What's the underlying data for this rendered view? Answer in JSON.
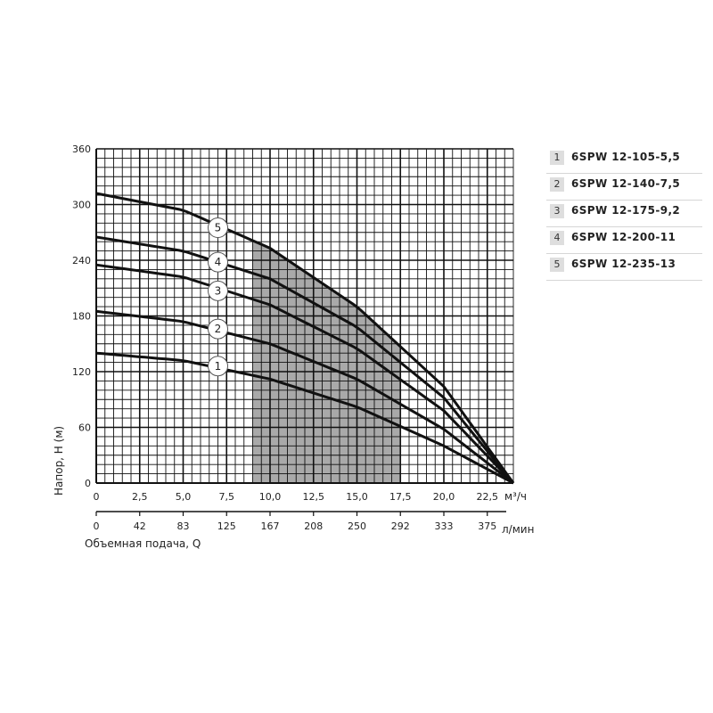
{
  "chart_data": {
    "type": "line",
    "ylabel": "Напор, H (м)",
    "xlabel": "Объемная подача, Q",
    "x_unit": "м³/ч",
    "x2_unit": "л/мин",
    "ylim": [
      0,
      360
    ],
    "xlim": [
      0,
      24
    ],
    "y_ticks": [
      0,
      60,
      120,
      180,
      240,
      300,
      360
    ],
    "x_ticks": [
      0,
      2.5,
      5.0,
      7.5,
      10.0,
      12.5,
      15.0,
      17.5,
      20.0,
      22.5
    ],
    "x_tick_labels": [
      "0",
      "2,5",
      "5,0",
      "7,5",
      "10,0",
      "12,5",
      "15,0",
      "17,5",
      "20,0",
      "22,5"
    ],
    "x2_tick_labels": [
      "0",
      "42",
      "83",
      "125",
      "167",
      "208",
      "250",
      "292",
      "333",
      "375"
    ],
    "grid": true,
    "shaded_region": {
      "x_from": 9.0,
      "x_to": 17.5
    },
    "series": [
      {
        "name": "6SPW 12-105-5,5",
        "label": "1",
        "label_at": [
          7,
          126
        ],
        "x": [
          0,
          5,
          10,
          15,
          20,
          24
        ],
        "y": [
          140,
          132,
          112,
          82,
          40,
          0
        ]
      },
      {
        "name": "6SPW 12-140-7,5",
        "label": "2",
        "label_at": [
          7,
          166
        ],
        "x": [
          0,
          5,
          10,
          15,
          20,
          24
        ],
        "y": [
          185,
          174,
          150,
          112,
          58,
          0
        ]
      },
      {
        "name": "6SPW 12-175-9,2",
        "label": "3",
        "label_at": [
          7,
          207
        ],
        "x": [
          0,
          5,
          10,
          15,
          20,
          24
        ],
        "y": [
          235,
          222,
          192,
          145,
          78,
          0
        ]
      },
      {
        "name": "6SPW 12-200-11",
        "label": "4",
        "label_at": [
          7,
          238
        ],
        "x": [
          0,
          5,
          10,
          15,
          20,
          24
        ],
        "y": [
          265,
          250,
          220,
          168,
          92,
          0
        ]
      },
      {
        "name": "6SPW 12-235-13",
        "label": "5",
        "label_at": [
          7,
          275
        ],
        "x": [
          0,
          5,
          10,
          15,
          20,
          24
        ],
        "y": [
          312,
          294,
          253,
          190,
          104,
          0
        ]
      }
    ]
  },
  "legend": [
    {
      "num": "1",
      "text": "6SPW 12-105-5,5"
    },
    {
      "num": "2",
      "text": "6SPW 12-140-7,5"
    },
    {
      "num": "3",
      "text": "6SPW 12-175-9,2"
    },
    {
      "num": "4",
      "text": "6SPW 12-200-11"
    },
    {
      "num": "5",
      "text": "6SPW 12-235-13"
    }
  ]
}
